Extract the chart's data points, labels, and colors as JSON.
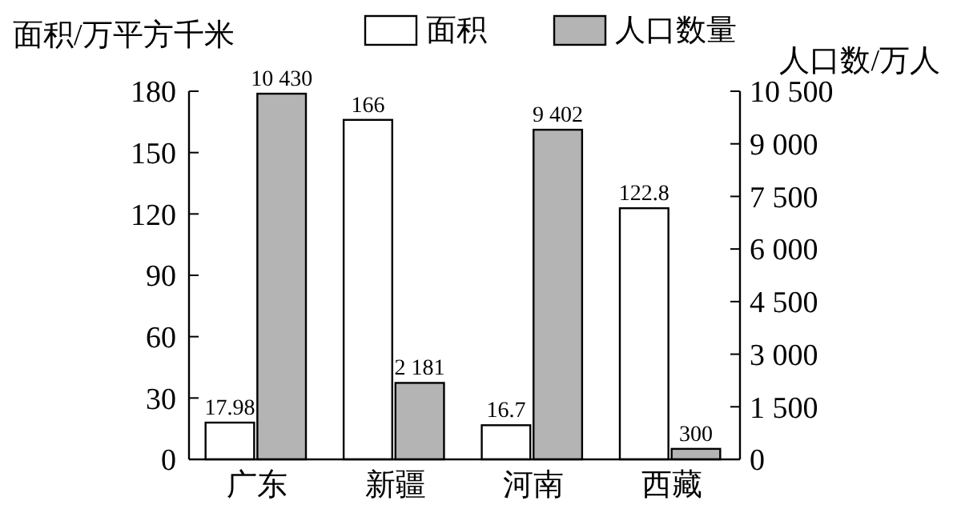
{
  "chart_data": {
    "type": "bar",
    "xlabel": null,
    "ylabel": "面积/万平方千米",
    "y2label": "人口数/万人",
    "categories": [
      "广东",
      "新疆",
      "河南",
      "西藏"
    ],
    "series": [
      {
        "name": "面积",
        "color": "#ffffff",
        "values": [
          17.98,
          166,
          16.7,
          122.8
        ],
        "value_labels": [
          "17.98",
          "166",
          "16.7",
          "122.8"
        ]
      },
      {
        "name": "人口数量",
        "color": "#b4b4b4",
        "axis": "y2",
        "values": [
          10430,
          2181,
          9402,
          300
        ],
        "value_labels": [
          "10 430",
          "2 181",
          "9 402",
          "300"
        ]
      }
    ],
    "ylim": [
      0,
      180
    ],
    "yticks": [
      0,
      30,
      60,
      90,
      120,
      150,
      180
    ],
    "y2lim": [
      0,
      10500
    ],
    "y2ticks": [
      0,
      {
        "value": 1500,
        "label": "1 500"
      },
      {
        "value": 3000,
        "label": "3 000"
      },
      {
        "value": 4500,
        "label": "4 500"
      },
      {
        "value": 6000,
        "label": "6 000"
      },
      {
        "value": 7500,
        "label": "7 500"
      },
      {
        "value": 9000,
        "label": "9 000"
      },
      {
        "value": 10500,
        "label": "10 500"
      }
    ],
    "legend": "top"
  }
}
